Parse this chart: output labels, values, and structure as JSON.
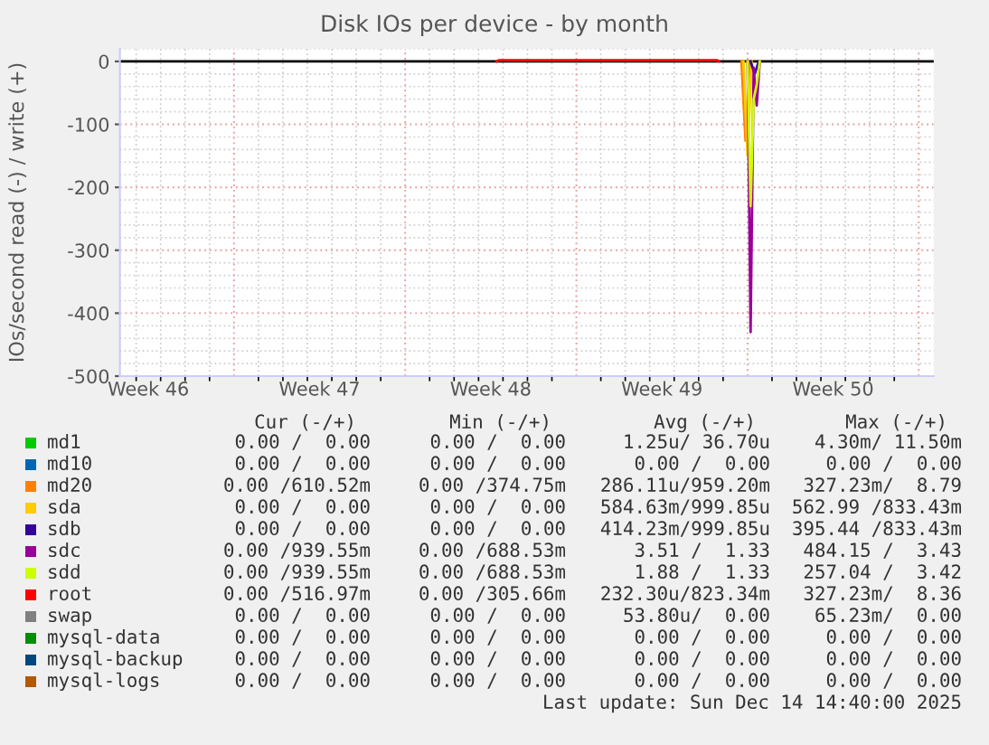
{
  "chart_data": {
    "type": "line",
    "title": "Disk IOs per device - by month",
    "ylabel": "IOs/second read (-) / write (+)",
    "x": [
      "2025-12-07T00:00",
      "2025-12-07T03:00",
      "2025-12-07T06:00",
      "2025-12-07T09:00",
      "2025-12-07T12:00"
    ],
    "series": [
      {
        "name": "md1",
        "color": "#00cc00",
        "values": [
          null,
          null,
          null,
          null,
          null
        ]
      },
      {
        "name": "md10",
        "color": "#0066b3",
        "values": [
          null,
          null,
          null,
          null,
          null
        ]
      },
      {
        "name": "md20",
        "color": "#ff8000",
        "x": [
          "2025-12-06T18:00",
          "2025-12-06T22:00",
          "2025-12-07T02:00"
        ],
        "values": [
          0,
          -126,
          0
        ]
      },
      {
        "name": "sda",
        "color": "#ffcc00",
        "x": [
          "2025-12-06T20:00",
          "2025-12-07T00:00",
          "2025-12-07T04:00"
        ],
        "values": [
          0,
          -150,
          0
        ]
      },
      {
        "name": "sdb",
        "color": "#330099",
        "x": [
          "2025-12-07T03:00",
          "2025-12-07T07:00",
          "2025-12-07T11:00"
        ],
        "values": [
          0,
          -20,
          0
        ]
      },
      {
        "name": "sdc",
        "color": "#990099",
        "values": [
          0,
          -430,
          -10,
          -70,
          0
        ]
      },
      {
        "name": "sdd",
        "color": "#ccff00",
        "values": [
          0,
          -230,
          -60,
          -37,
          0
        ]
      },
      {
        "name": "root",
        "color": "#ff0000",
        "x": [
          "2025-11-26T18:00",
          "2025-11-26T20:00",
          "2025-12-05T18:00",
          "2025-12-05T20:00"
        ],
        "values": [
          0,
          2,
          2,
          0
        ]
      },
      {
        "name": "swap",
        "color": "#808080",
        "values": [
          null,
          null,
          null,
          null,
          null
        ]
      },
      {
        "name": "mysql-data",
        "color": "#008f00",
        "values": [
          null,
          null,
          null,
          null,
          null
        ]
      },
      {
        "name": "mysql-backup",
        "color": "#00487d",
        "values": [
          null,
          null,
          null,
          null,
          null
        ]
      },
      {
        "name": "mysql-logs",
        "color": "#b35a00",
        "values": [
          null,
          null,
          null,
          null,
          null
        ]
      }
    ],
    "xlim": [
      "2025-11-11T08:00",
      "2025-12-14T14:40"
    ],
    "xticks": [
      {
        "value": "2025-11-16",
        "label": null
      },
      {
        "value": "2025-11-23",
        "label": null
      },
      {
        "value": "2025-11-30",
        "label": null
      },
      {
        "value": "2025-12-07",
        "label": null
      },
      {
        "value": "2025-12-14",
        "label": null
      },
      {
        "value": "2025-11-12T12:00",
        "label": "Week 46"
      },
      {
        "value": "2025-11-19T12:00",
        "label": "Week 47"
      },
      {
        "value": "2025-11-26T12:00",
        "label": "Week 48"
      },
      {
        "value": "2025-12-03T12:00",
        "label": "Week 49"
      },
      {
        "value": "2025-12-10T12:00",
        "label": "Week 50"
      }
    ],
    "ylim": [
      -500,
      20
    ],
    "yticks": [
      -500,
      -400,
      -300,
      -200,
      -100,
      0
    ],
    "ref_lines": [
      {
        "axis": "y",
        "value": 0,
        "color": "#000000"
      }
    ],
    "grid": true,
    "legend": "bottom",
    "annotations": [
      "Cur (-/+)",
      "Min (-/+)",
      "Avg (-/+)",
      "Max (-/+)",
      "0.00 /  0.00",
      "0.00 /  0.00",
      "1.25u/ 36.70u",
      "4.30m/ 11.50m",
      "0.00 /  0.00",
      "0.00 /  0.00",
      "0.00 /  0.00",
      "0.00 /  0.00",
      "0.00 /610.52m",
      "0.00 /374.75m",
      "286.11u/959.20m",
      "327.23m/  8.79",
      "0.00 /  0.00",
      "0.00 /  0.00",
      "584.63m/999.85u",
      "562.99 /833.43m",
      "0.00 /  0.00",
      "0.00 /  0.00",
      "414.23m/999.85u",
      "395.44 /833.43m",
      "0.00 /939.55m",
      "0.00 /688.53m",
      "3.51 /  1.33",
      "484.15 /  3.43",
      "0.00 /939.55m",
      "0.00 /688.53m",
      "1.88 /  1.33",
      "257.04 /  3.42",
      "0.00 /516.97m",
      "0.00 /305.66m",
      "232.30u/823.34m",
      "327.23m/  8.36",
      "0.00 /  0.00",
      "0.00 /  0.00",
      "53.80u/  0.00",
      "65.23m/  0.00",
      "0.00 /  0.00",
      "0.00 /  0.00",
      "0.00 /  0.00",
      "0.00 /  0.00",
      "0.00 /  0.00",
      "0.00 /  0.00",
      "0.00 /  0.00",
      "0.00 /  0.00",
      "0.00 /  0.00",
      "0.00 /  0.00",
      "0.00 /  0.00",
      "0.00 /  0.00",
      "Last update: Sun Dec 14 14:40:00 2025"
    ]
  }
}
